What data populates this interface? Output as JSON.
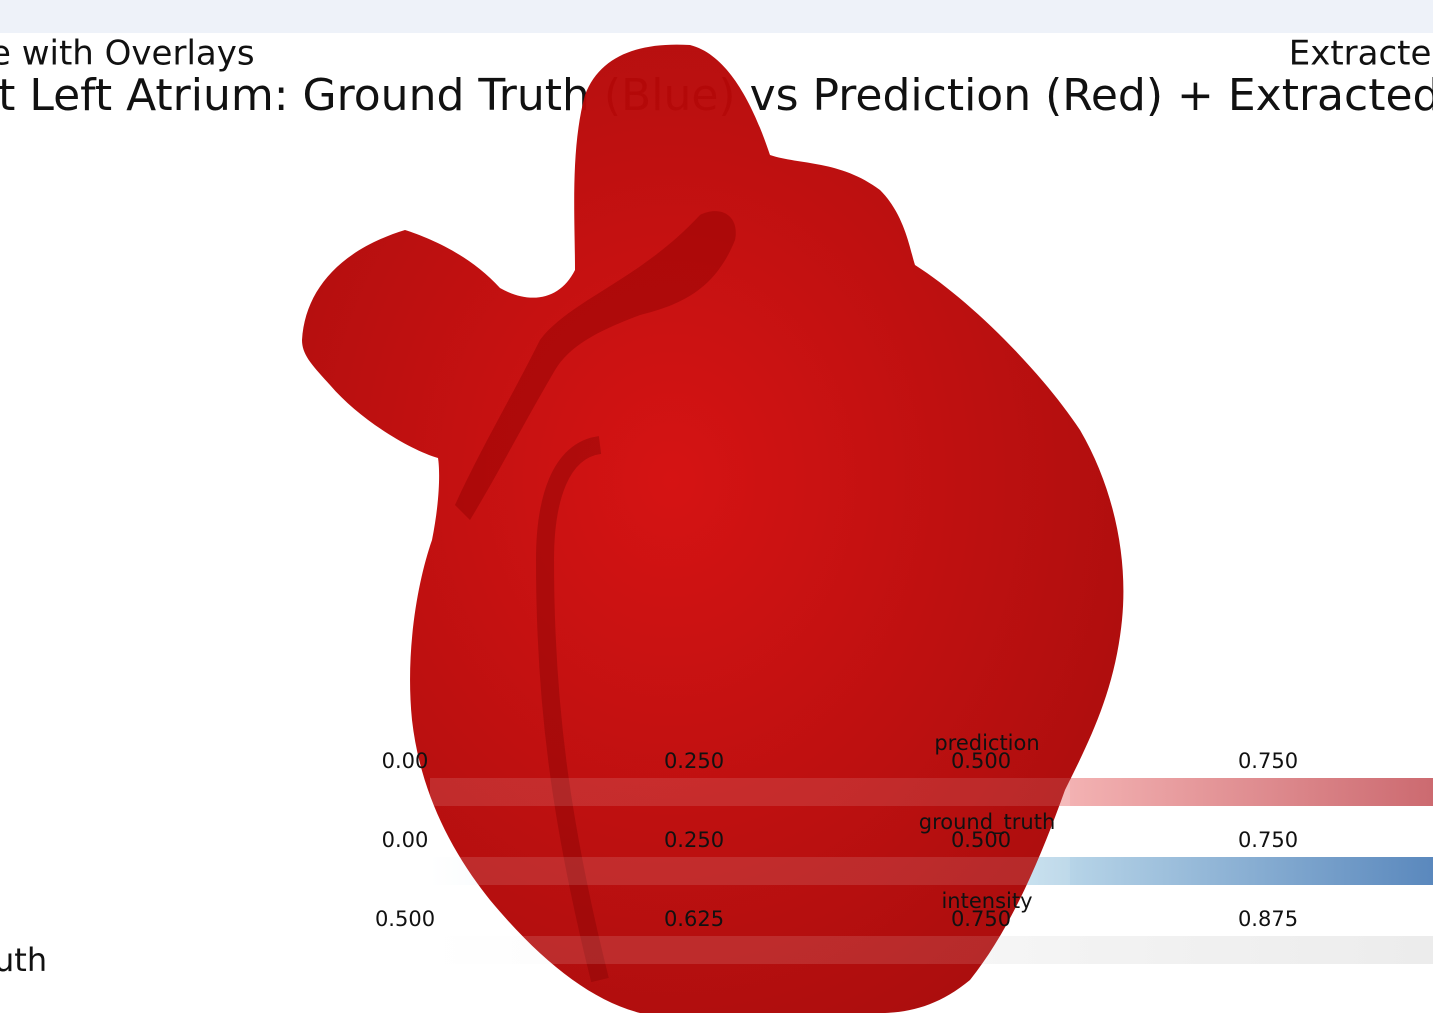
{
  "header": {
    "subtitle_left": "e with Overlays",
    "subtitle_right": "Extracted",
    "title": "rt Left Atrium: Ground Truth (Blue) vs Prediction (Red) + Extracted Me"
  },
  "colorbars": [
    {
      "title": "prediction",
      "ticks": [
        "0.00",
        "0.250",
        "0.500",
        "0.750"
      ]
    },
    {
      "title": "ground_truth",
      "ticks": [
        "0.00",
        "0.250",
        "0.500",
        "0.750"
      ]
    },
    {
      "title": "intensity",
      "ticks": [
        "0.500",
        "0.625",
        "0.750",
        "0.875"
      ]
    }
  ],
  "legend": {
    "label": "uth"
  }
}
